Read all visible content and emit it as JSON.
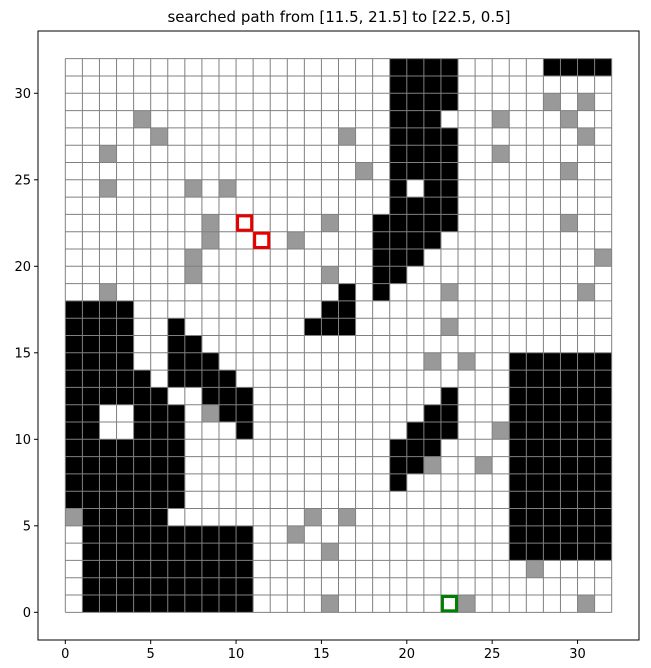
{
  "chart_data": {
    "type": "heatmap",
    "title": "searched path from [11.5, 21.5] to [22.5, 0.5]",
    "xlabel": "",
    "ylabel": "",
    "xlim": [
      -1.6,
      33.6
    ],
    "ylim": [
      -1.6,
      33.6
    ],
    "xticks": [
      0,
      5,
      10,
      15,
      20,
      25,
      30
    ],
    "yticks": [
      0,
      5,
      10,
      15,
      20,
      25,
      30
    ],
    "grid": {
      "cols": 32,
      "rows": 32,
      "x0": 0,
      "y0": 0,
      "cell": 1
    },
    "colors": {
      "free": "#ffffff",
      "visited": "#999999",
      "obstacle": "#000000",
      "grid_line": "#808080",
      "start": "#e60000",
      "goal": "#008000"
    },
    "obstacle_cells": [
      [
        1,
        0
      ],
      [
        2,
        0
      ],
      [
        3,
        0
      ],
      [
        4,
        0
      ],
      [
        5,
        0
      ],
      [
        6,
        0
      ],
      [
        7,
        0
      ],
      [
        8,
        0
      ],
      [
        9,
        0
      ],
      [
        10,
        0
      ],
      [
        1,
        1
      ],
      [
        2,
        1
      ],
      [
        3,
        1
      ],
      [
        4,
        1
      ],
      [
        5,
        1
      ],
      [
        6,
        1
      ],
      [
        7,
        1
      ],
      [
        8,
        1
      ],
      [
        9,
        1
      ],
      [
        10,
        1
      ],
      [
        1,
        2
      ],
      [
        2,
        2
      ],
      [
        3,
        2
      ],
      [
        4,
        2
      ],
      [
        5,
        2
      ],
      [
        6,
        2
      ],
      [
        7,
        2
      ],
      [
        8,
        2
      ],
      [
        9,
        2
      ],
      [
        10,
        2
      ],
      [
        1,
        3
      ],
      [
        2,
        3
      ],
      [
        3,
        3
      ],
      [
        4,
        3
      ],
      [
        5,
        3
      ],
      [
        6,
        3
      ],
      [
        7,
        3
      ],
      [
        8,
        3
      ],
      [
        9,
        3
      ],
      [
        10,
        3
      ],
      [
        26,
        3
      ],
      [
        27,
        3
      ],
      [
        28,
        3
      ],
      [
        29,
        3
      ],
      [
        30,
        3
      ],
      [
        31,
        3
      ],
      [
        1,
        4
      ],
      [
        2,
        4
      ],
      [
        3,
        4
      ],
      [
        4,
        4
      ],
      [
        5,
        4
      ],
      [
        6,
        4
      ],
      [
        7,
        4
      ],
      [
        8,
        4
      ],
      [
        9,
        4
      ],
      [
        10,
        4
      ],
      [
        26,
        4
      ],
      [
        27,
        4
      ],
      [
        28,
        4
      ],
      [
        29,
        4
      ],
      [
        30,
        4
      ],
      [
        31,
        4
      ],
      [
        1,
        5
      ],
      [
        2,
        5
      ],
      [
        3,
        5
      ],
      [
        4,
        5
      ],
      [
        5,
        5
      ],
      [
        26,
        5
      ],
      [
        27,
        5
      ],
      [
        28,
        5
      ],
      [
        29,
        5
      ],
      [
        30,
        5
      ],
      [
        31,
        5
      ],
      [
        0,
        6
      ],
      [
        1,
        6
      ],
      [
        2,
        6
      ],
      [
        3,
        6
      ],
      [
        4,
        6
      ],
      [
        5,
        6
      ],
      [
        6,
        6
      ],
      [
        26,
        6
      ],
      [
        27,
        6
      ],
      [
        28,
        6
      ],
      [
        29,
        6
      ],
      [
        30,
        6
      ],
      [
        31,
        6
      ],
      [
        0,
        7
      ],
      [
        1,
        7
      ],
      [
        2,
        7
      ],
      [
        3,
        7
      ],
      [
        4,
        7
      ],
      [
        5,
        7
      ],
      [
        6,
        7
      ],
      [
        19,
        7
      ],
      [
        26,
        7
      ],
      [
        27,
        7
      ],
      [
        28,
        7
      ],
      [
        29,
        7
      ],
      [
        30,
        7
      ],
      [
        31,
        7
      ],
      [
        0,
        8
      ],
      [
        1,
        8
      ],
      [
        2,
        8
      ],
      [
        3,
        8
      ],
      [
        4,
        8
      ],
      [
        5,
        8
      ],
      [
        6,
        8
      ],
      [
        19,
        8
      ],
      [
        20,
        8
      ],
      [
        26,
        8
      ],
      [
        27,
        8
      ],
      [
        28,
        8
      ],
      [
        29,
        8
      ],
      [
        30,
        8
      ],
      [
        31,
        8
      ],
      [
        0,
        9
      ],
      [
        1,
        9
      ],
      [
        2,
        9
      ],
      [
        3,
        9
      ],
      [
        4,
        9
      ],
      [
        5,
        9
      ],
      [
        6,
        9
      ],
      [
        19,
        9
      ],
      [
        20,
        9
      ],
      [
        21,
        9
      ],
      [
        26,
        9
      ],
      [
        27,
        9
      ],
      [
        28,
        9
      ],
      [
        29,
        9
      ],
      [
        30,
        9
      ],
      [
        31,
        9
      ],
      [
        0,
        10
      ],
      [
        1,
        10
      ],
      [
        4,
        10
      ],
      [
        5,
        10
      ],
      [
        6,
        10
      ],
      [
        10,
        10
      ],
      [
        20,
        10
      ],
      [
        21,
        10
      ],
      [
        22,
        10
      ],
      [
        26,
        10
      ],
      [
        27,
        10
      ],
      [
        28,
        10
      ],
      [
        29,
        10
      ],
      [
        30,
        10
      ],
      [
        31,
        10
      ],
      [
        0,
        11
      ],
      [
        1,
        11
      ],
      [
        4,
        11
      ],
      [
        5,
        11
      ],
      [
        6,
        11
      ],
      [
        9,
        11
      ],
      [
        10,
        11
      ],
      [
        21,
        11
      ],
      [
        22,
        11
      ],
      [
        26,
        11
      ],
      [
        27,
        11
      ],
      [
        28,
        11
      ],
      [
        29,
        11
      ],
      [
        30,
        11
      ],
      [
        31,
        11
      ],
      [
        0,
        12
      ],
      [
        1,
        12
      ],
      [
        2,
        12
      ],
      [
        3,
        12
      ],
      [
        4,
        12
      ],
      [
        5,
        12
      ],
      [
        8,
        12
      ],
      [
        9,
        12
      ],
      [
        10,
        12
      ],
      [
        22,
        12
      ],
      [
        26,
        12
      ],
      [
        27,
        12
      ],
      [
        28,
        12
      ],
      [
        29,
        12
      ],
      [
        30,
        12
      ],
      [
        31,
        12
      ],
      [
        0,
        13
      ],
      [
        1,
        13
      ],
      [
        2,
        13
      ],
      [
        3,
        13
      ],
      [
        4,
        13
      ],
      [
        6,
        13
      ],
      [
        7,
        13
      ],
      [
        8,
        13
      ],
      [
        9,
        13
      ],
      [
        26,
        13
      ],
      [
        27,
        13
      ],
      [
        28,
        13
      ],
      [
        29,
        13
      ],
      [
        30,
        13
      ],
      [
        31,
        13
      ],
      [
        0,
        14
      ],
      [
        1,
        14
      ],
      [
        2,
        14
      ],
      [
        3,
        14
      ],
      [
        6,
        14
      ],
      [
        7,
        14
      ],
      [
        8,
        14
      ],
      [
        26,
        14
      ],
      [
        27,
        14
      ],
      [
        28,
        14
      ],
      [
        29,
        14
      ],
      [
        30,
        14
      ],
      [
        31,
        14
      ],
      [
        0,
        15
      ],
      [
        1,
        15
      ],
      [
        2,
        15
      ],
      [
        3,
        15
      ],
      [
        6,
        15
      ],
      [
        7,
        15
      ],
      [
        0,
        16
      ],
      [
        1,
        16
      ],
      [
        2,
        16
      ],
      [
        3,
        16
      ],
      [
        6,
        16
      ],
      [
        14,
        16
      ],
      [
        15,
        16
      ],
      [
        16,
        16
      ],
      [
        0,
        17
      ],
      [
        1,
        17
      ],
      [
        2,
        17
      ],
      [
        3,
        17
      ],
      [
        15,
        17
      ],
      [
        16,
        17
      ],
      [
        16,
        18
      ],
      [
        18,
        18
      ],
      [
        18,
        19
      ],
      [
        19,
        19
      ],
      [
        18,
        20
      ],
      [
        19,
        20
      ],
      [
        20,
        20
      ],
      [
        18,
        21
      ],
      [
        19,
        21
      ],
      [
        20,
        21
      ],
      [
        21,
        21
      ],
      [
        18,
        22
      ],
      [
        19,
        22
      ],
      [
        20,
        22
      ],
      [
        21,
        22
      ],
      [
        22,
        22
      ],
      [
        19,
        23
      ],
      [
        20,
        23
      ],
      [
        21,
        23
      ],
      [
        22,
        23
      ],
      [
        19,
        24
      ],
      [
        21,
        24
      ],
      [
        22,
        24
      ],
      [
        19,
        25
      ],
      [
        20,
        25
      ],
      [
        21,
        25
      ],
      [
        22,
        25
      ],
      [
        19,
        26
      ],
      [
        20,
        26
      ],
      [
        21,
        26
      ],
      [
        22,
        26
      ],
      [
        19,
        27
      ],
      [
        20,
        27
      ],
      [
        21,
        27
      ],
      [
        22,
        27
      ],
      [
        19,
        28
      ],
      [
        20,
        28
      ],
      [
        21,
        28
      ],
      [
        19,
        29
      ],
      [
        20,
        29
      ],
      [
        21,
        29
      ],
      [
        22,
        29
      ],
      [
        19,
        30
      ],
      [
        20,
        30
      ],
      [
        21,
        30
      ],
      [
        22,
        30
      ],
      [
        19,
        31
      ],
      [
        20,
        31
      ],
      [
        21,
        31
      ],
      [
        22,
        31
      ],
      [
        28,
        31
      ],
      [
        29,
        31
      ],
      [
        30,
        31
      ],
      [
        31,
        31
      ]
    ],
    "visited_cells": [
      [
        15,
        0
      ],
      [
        23,
        0
      ],
      [
        30,
        0
      ],
      [
        27,
        2
      ],
      [
        15,
        3
      ],
      [
        13,
        4
      ],
      [
        0,
        5
      ],
      [
        14,
        5
      ],
      [
        16,
        5
      ],
      [
        21,
        8
      ],
      [
        24,
        8
      ],
      [
        25,
        10
      ],
      [
        8,
        11
      ],
      [
        21,
        14
      ],
      [
        23,
        14
      ],
      [
        22,
        16
      ],
      [
        2,
        18
      ],
      [
        22,
        18
      ],
      [
        30,
        18
      ],
      [
        7,
        19
      ],
      [
        15,
        19
      ],
      [
        7,
        20
      ],
      [
        31,
        20
      ],
      [
        8,
        21
      ],
      [
        13,
        21
      ],
      [
        8,
        22
      ],
      [
        15,
        22
      ],
      [
        29,
        22
      ],
      [
        2,
        24
      ],
      [
        7,
        24
      ],
      [
        9,
        24
      ],
      [
        17,
        25
      ],
      [
        29,
        25
      ],
      [
        2,
        26
      ],
      [
        25,
        26
      ],
      [
        5,
        27
      ],
      [
        16,
        27
      ],
      [
        30,
        27
      ],
      [
        4,
        28
      ],
      [
        25,
        28
      ],
      [
        29,
        28
      ],
      [
        28,
        29
      ],
      [
        30,
        29
      ]
    ],
    "start": {
      "label": "[11.5, 21.5]",
      "x": 11.5,
      "y": 21.5
    },
    "start_marker_cells": [
      [
        10,
        22
      ],
      [
        11,
        21
      ]
    ],
    "goal": {
      "label": "[22.5, 0.5]",
      "x": 22.5,
      "y": 0.5
    },
    "goal_marker_cells": [
      [
        22,
        0
      ]
    ]
  }
}
